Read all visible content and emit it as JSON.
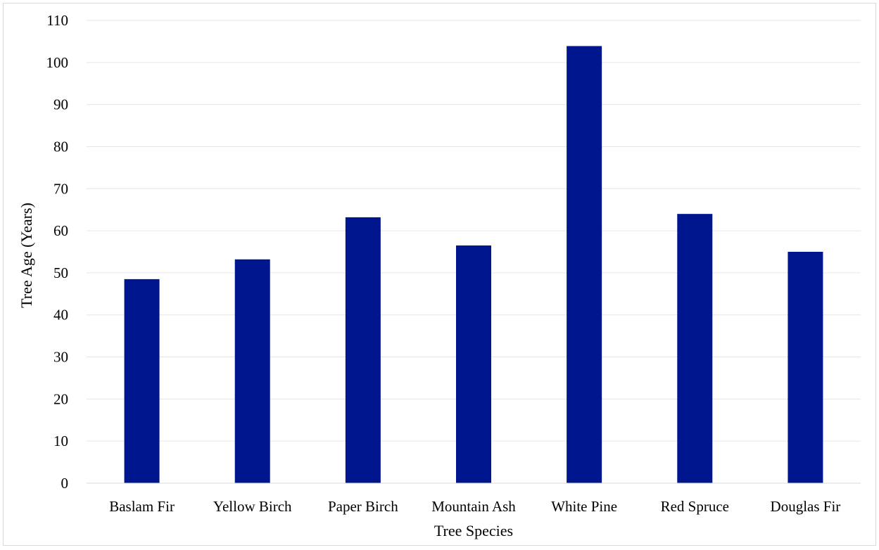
{
  "chart_data": {
    "type": "bar",
    "title": "",
    "xlabel": "Tree Species",
    "ylabel": "Tree Age (Years)",
    "categories": [
      "Baslam Fir",
      "Yellow Birch",
      "Paper Birch",
      "Mountain Ash",
      "White Pine",
      "Red Spruce",
      "Douglas Fir"
    ],
    "values": [
      48.5,
      53.2,
      63.2,
      56.5,
      103.9,
      64.0,
      55.0
    ],
    "ylim": [
      0,
      110
    ],
    "yticks": [
      0,
      10,
      20,
      30,
      40,
      50,
      60,
      70,
      80,
      90,
      100,
      110
    ],
    "grid": true,
    "legend": "none",
    "bar_color": "#00168f",
    "grid_color": "#e6e6e6"
  }
}
